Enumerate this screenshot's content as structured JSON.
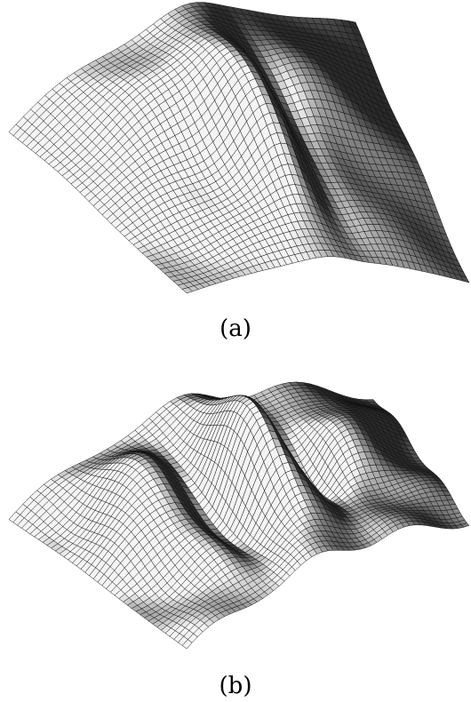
{
  "panels": [
    {
      "label": "(a)"
    },
    {
      "label": "(b)"
    }
  ],
  "colors": {
    "mesh_line": "#111111",
    "surface_light": "#f4f4f4",
    "surface_mid": "#9a9a9a",
    "surface_dark": "#2a2a2a",
    "background": "#ffffff"
  }
}
